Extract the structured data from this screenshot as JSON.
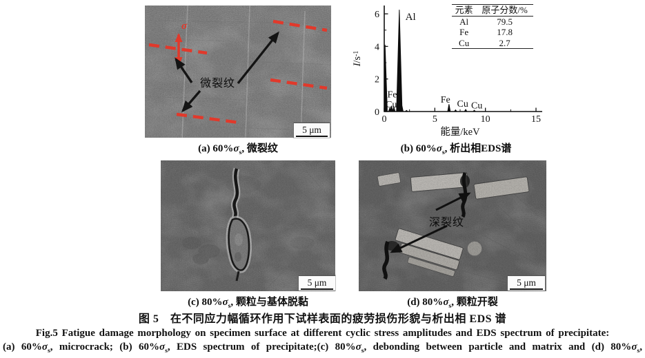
{
  "colors": {
    "annotation_red": "#e1392b",
    "ink": "#111111"
  },
  "panels": {
    "a": {
      "sigma_label": "σ",
      "annotation": "微裂纹",
      "scale_label": "5 μm",
      "caption": {
        "prefix": "(a) 60%",
        "sigma": "σ",
        "sub": "s",
        "rest": ", 微裂纹"
      }
    },
    "b": {
      "caption": {
        "prefix": "(b) 60%",
        "sigma": "σ",
        "sub": "s",
        "rest": ", 析出相EDS谱"
      }
    },
    "c": {
      "scale_label": "5 μm",
      "caption": {
        "prefix": "(c) 80%",
        "sigma": "σ",
        "sub": "s",
        "rest": ", 颗粒与基体脱黏"
      }
    },
    "d": {
      "annotation": "深裂纹",
      "scale_label": "5 μm",
      "caption": {
        "prefix": "(d) 80%",
        "sigma": "σ",
        "sub": "s",
        "rest": ", 颗粒开裂"
      }
    }
  },
  "titles": {
    "zh": "图 5　在不同应力幅循环作用下试样表面的疲劳损伤形貌与析出相 EDS 谱",
    "en": "Fig.5  Fatigue damage morphology on specimen surface at different cyclic stress amplitudes and EDS spectrum of precipitate:",
    "en_line2": {
      "p1": "(a) 60%",
      "s1": "σ",
      "b1": "s",
      "p2": ", microcrack; (b) 60%",
      "s2": "σ",
      "b2": "s",
      "p3": ", EDS spectrum of precipitate;(c) 80%",
      "s3": "σ",
      "b3": "s",
      "p4": ", debonding between particle and matrix and (d) 80%",
      "s4": "σ",
      "b4": "s",
      "p5": ","
    }
  },
  "chart_data": {
    "type": "line",
    "title": "EDS spectrum of precipitate",
    "xlabel": "能量/keV",
    "ylabel_italic": "I",
    "ylabel_unit": "/s",
    "ylabel_sup": "-1",
    "xlim": [
      0,
      15
    ],
    "ylim": [
      0,
      6.3
    ],
    "xticks": [
      0,
      5,
      10,
      15
    ],
    "yticks": [
      0,
      2,
      4,
      6
    ],
    "grid": false,
    "legend": false,
    "peaks": [
      {
        "kev": 0.08,
        "intensity": 4.1,
        "element": ""
      },
      {
        "kev": 0.55,
        "intensity": 0.22,
        "element": "Fe"
      },
      {
        "kev": 0.72,
        "intensity": 0.35,
        "element": "Fe"
      },
      {
        "kev": 0.95,
        "intensity": 0.28,
        "element": "Cu"
      },
      {
        "kev": 1.49,
        "intensity": 6.25,
        "element": "Al"
      },
      {
        "kev": 1.74,
        "intensity": 0.4,
        "element": ""
      },
      {
        "kev": 2.2,
        "intensity": 0.07,
        "element": ""
      },
      {
        "kev": 6.4,
        "intensity": 0.45,
        "element": "Fe"
      },
      {
        "kev": 7.05,
        "intensity": 0.1,
        "element": "Fe"
      },
      {
        "kev": 8.05,
        "intensity": 0.13,
        "element": "Cu"
      },
      {
        "kev": 8.9,
        "intensity": 0.08,
        "element": "Cu"
      }
    ],
    "annotations": [
      {
        "text": "Al",
        "kev": 2.6,
        "i": 5.62
      },
      {
        "text": "Fe",
        "kev": 0.78,
        "i": 0.86
      },
      {
        "text": "Cu",
        "kev": 0.7,
        "i": 0.26
      },
      {
        "text": "Fe",
        "kev": 6.05,
        "i": 0.55
      },
      {
        "text": "Cu",
        "kev": 7.75,
        "i": 0.3
      },
      {
        "text": "Cu",
        "kev": 9.15,
        "i": 0.2
      }
    ],
    "inset_table": {
      "headers": [
        "元素",
        "原子分数/%"
      ],
      "rows": [
        [
          "Al",
          "79.5"
        ],
        [
          "Fe",
          "17.8"
        ],
        [
          "Cu",
          "2.7"
        ]
      ]
    }
  }
}
